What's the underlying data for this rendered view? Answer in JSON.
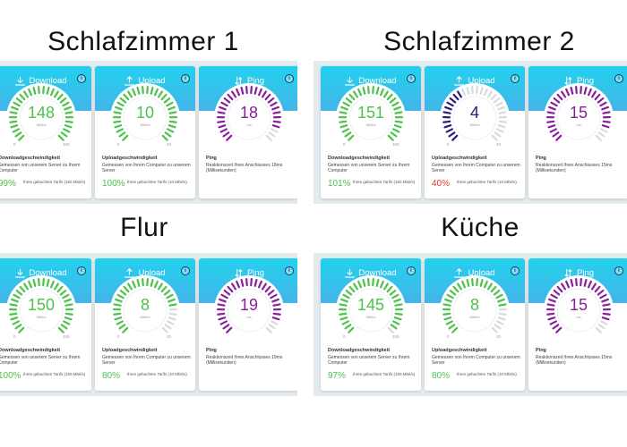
{
  "rooms": [
    {
      "name": "Schlafzimmer 1",
      "download": {
        "label": "Download",
        "value": "148",
        "unit": "Mbit/s",
        "min": "0",
        "max": "150",
        "title": "Downloadgeschwindigkeit",
        "desc": "Gemessen von unserem Server zu Ihrem Computer",
        "pct": "99%",
        "pct_note": "Ihres gebuchten Tarifs (150 Mbit/s)"
      },
      "upload": {
        "label": "Upload",
        "value": "10",
        "unit": "Mbit/s",
        "min": "0",
        "max": "10",
        "title": "Uploadgeschwindigkeit",
        "desc": "Gemessen von Ihrem Computer zu unserem Server",
        "pct": "100%",
        "pct_note": "Ihres gebuchten Tarifs (10 Mbit/s)"
      },
      "ping": {
        "label": "Ping",
        "value": "18",
        "unit": "ms",
        "title": "Ping",
        "desc": "Reaktionszeit Ihres Anschlusses 18ms (Millisekunden)"
      }
    },
    {
      "name": "Schlafzimmer 2",
      "download": {
        "label": "Download",
        "value": "151",
        "unit": "Mbit/s",
        "min": "0",
        "max": "150",
        "title": "Downloadgeschwindigkeit",
        "desc": "Gemessen von unserem Server zu Ihrem Computer",
        "pct": "101%",
        "pct_note": "Ihres gebuchten Tarifs (150 Mbit/s)"
      },
      "upload": {
        "label": "Upload",
        "value": "4",
        "unit": "Mbit/s",
        "min": "0",
        "max": "10",
        "title": "Uploadgeschwindigkeit",
        "desc": "Gemessen von Ihrem Computer zu unserem Server",
        "pct": "40%",
        "pct_note": "Ihres gebuchten Tarifs (10 Mbit/s)"
      },
      "ping": {
        "label": "Ping",
        "value": "15",
        "unit": "ms",
        "title": "Ping",
        "desc": "Reaktionszeit Ihres Anschlusses 15ms (Millisekunden)"
      }
    },
    {
      "name": "Flur",
      "download": {
        "label": "Download",
        "value": "150",
        "unit": "Mbit/s",
        "min": "0",
        "max": "150",
        "title": "Downloadgeschwindigkeit",
        "desc": "Gemessen von unserem Server zu Ihrem Computer",
        "pct": "100%",
        "pct_note": "Ihres gebuchten Tarifs (150 Mbit/s)"
      },
      "upload": {
        "label": "Upload",
        "value": "8",
        "unit": "Mbit/s",
        "min": "0",
        "max": "10",
        "title": "Uploadgeschwindigkeit",
        "desc": "Gemessen von Ihrem Computer zu unserem Server",
        "pct": "80%",
        "pct_note": "Ihres gebuchten Tarifs (10 Mbit/s)"
      },
      "ping": {
        "label": "Ping",
        "value": "19",
        "unit": "ms",
        "title": "Ping",
        "desc": "Reaktionszeit Ihres Anschlusses 19ms (Millisekunden)"
      }
    },
    {
      "name": "Küche",
      "download": {
        "label": "Download",
        "value": "145",
        "unit": "Mbit/s",
        "min": "0",
        "max": "150",
        "title": "Downloadgeschwindigkeit",
        "desc": "Gemessen von unserem Server zu Ihrem Computer",
        "pct": "97%",
        "pct_note": "Ihres gebuchten Tarifs (150 Mbit/s)"
      },
      "upload": {
        "label": "Upload",
        "value": "8",
        "unit": "Mbit/s",
        "min": "0",
        "max": "10",
        "title": "Uploadgeschwindigkeit",
        "desc": "Gemessen von Ihrem Computer zu unserem Server",
        "pct": "80%",
        "pct_note": "Ihres gebuchten Tarifs (10 Mbit/s)"
      },
      "ping": {
        "label": "Ping",
        "value": "15",
        "unit": "ms",
        "title": "Ping",
        "desc": "Reaktionszeit Ihres Anschlusses 15ms (Millisekunden)"
      }
    }
  ],
  "colors": {
    "download": "#4cc24a",
    "upload": "#4cc24a",
    "upload_low": "#2e1a7a",
    "ping": "#8a1f9c",
    "pct_good": "#4cc24a",
    "pct_bad": "#e0392b",
    "header_top": "#22d1ee",
    "header_bottom": "#44b5e9"
  },
  "gauges": {
    "room0_download": 0.99,
    "room0_upload": 1.0,
    "room0_ping": 0.9,
    "room1_download": 1.0,
    "room1_upload": 0.4,
    "room1_ping": 0.9,
    "room2_download": 1.0,
    "room2_upload": 0.8,
    "room2_ping": 0.9,
    "room3_download": 0.97,
    "room3_upload": 0.8,
    "room3_ping": 0.9
  },
  "icons": {
    "download": "download-arrow-icon",
    "upload": "upload-arrow-icon",
    "ping": "ping-arrows-icon",
    "info": "info-icon"
  }
}
